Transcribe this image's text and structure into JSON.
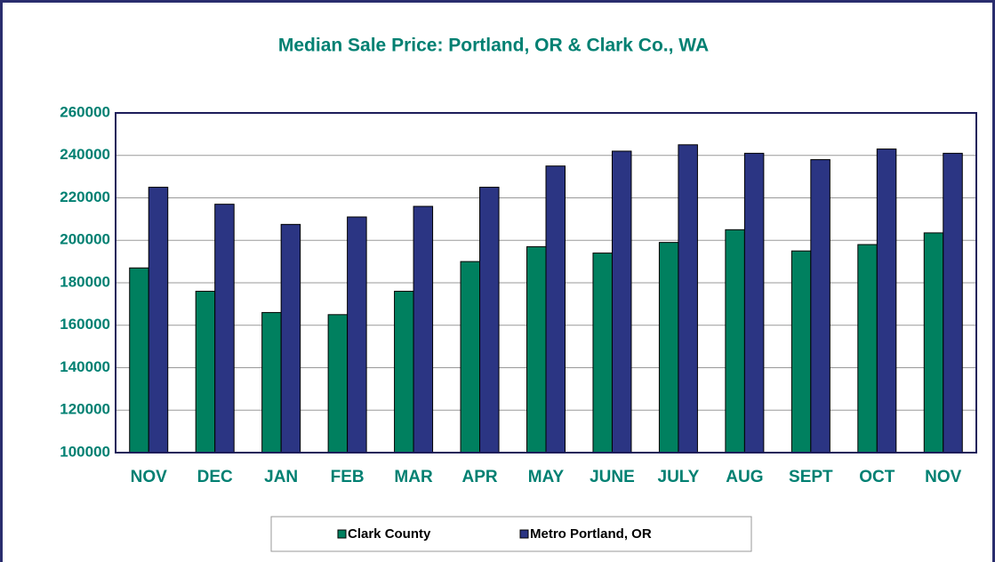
{
  "chart_data": {
    "type": "bar",
    "title": "Median Sale Price: Portland, OR & Clark Co., WA",
    "categories": [
      "NOV",
      "DEC",
      "JAN",
      "FEB",
      "MAR",
      "APR",
      "MAY",
      "JUNE",
      "JULY",
      "AUG",
      "SEPT",
      "OCT",
      "NOV"
    ],
    "series": [
      {
        "name": "Clark County",
        "color": "#00805f",
        "values": [
          187000,
          176000,
          166000,
          165000,
          176000,
          190000,
          197000,
          194000,
          199000,
          205000,
          195000,
          198000,
          203500
        ]
      },
      {
        "name": "Metro Portland, OR",
        "color": "#2b3583",
        "values": [
          225000,
          217000,
          207500,
          211000,
          216000,
          225000,
          235000,
          242000,
          245000,
          241000,
          238000,
          243000,
          241000
        ]
      }
    ],
    "ylim": [
      100000,
      260000
    ],
    "yticks": [
      100000,
      120000,
      140000,
      160000,
      180000,
      200000,
      220000,
      240000,
      260000
    ],
    "grid": true,
    "legend": "bottom"
  }
}
